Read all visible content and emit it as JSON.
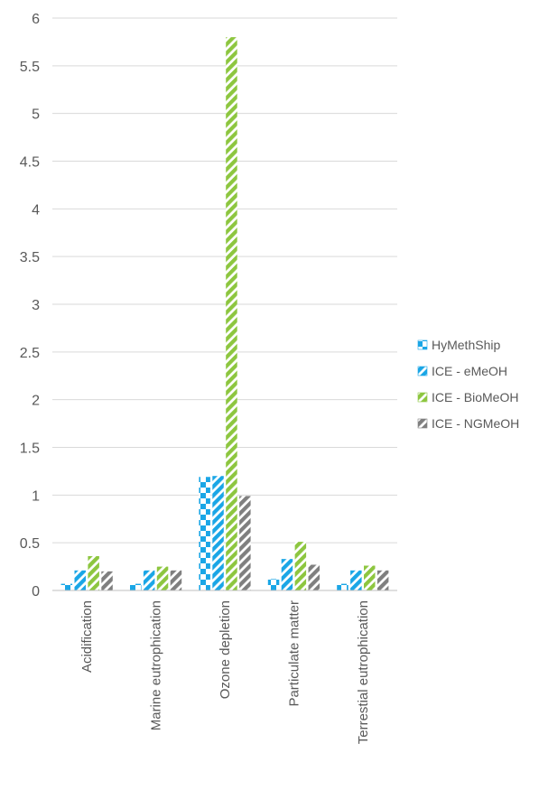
{
  "chart_data": {
    "type": "bar",
    "title": "",
    "xlabel": "",
    "ylabel": "",
    "ylim": [
      0,
      6
    ],
    "yticks": [
      "0",
      "0.5",
      "1",
      "1.5",
      "2",
      "2.5",
      "3",
      "3.5",
      "4",
      "4.5",
      "5",
      "5.5",
      "6"
    ],
    "ytick_values": [
      0,
      0.5,
      1,
      1.5,
      2,
      2.5,
      3,
      3.5,
      4,
      4.5,
      5,
      5.5,
      6
    ],
    "grid": true,
    "legend_position": "right",
    "categories": [
      "Acidification",
      "Marine eutrophication",
      "Ozone depletion",
      "Particulate matter",
      "Terrestial eutrophication"
    ],
    "series": [
      {
        "name": "HyMethShip",
        "color": "#1aa6e6",
        "pattern": "checker",
        "values": [
          0.07,
          0.07,
          1.19,
          0.12,
          0.07
        ]
      },
      {
        "name": "ICE - eMeOH",
        "color": "#1aa6e6",
        "pattern": "diagonal",
        "values": [
          0.21,
          0.21,
          1.2,
          0.33,
          0.21
        ]
      },
      {
        "name": "ICE - BioMeOH",
        "color": "#8dc63f",
        "pattern": "diagonal",
        "values": [
          0.36,
          0.25,
          5.8,
          0.51,
          0.26
        ]
      },
      {
        "name": "ICE - NGMeOH",
        "color": "#7f7f7f",
        "pattern": "diagonal",
        "values": [
          0.2,
          0.21,
          0.99,
          0.27,
          0.21
        ]
      }
    ]
  }
}
